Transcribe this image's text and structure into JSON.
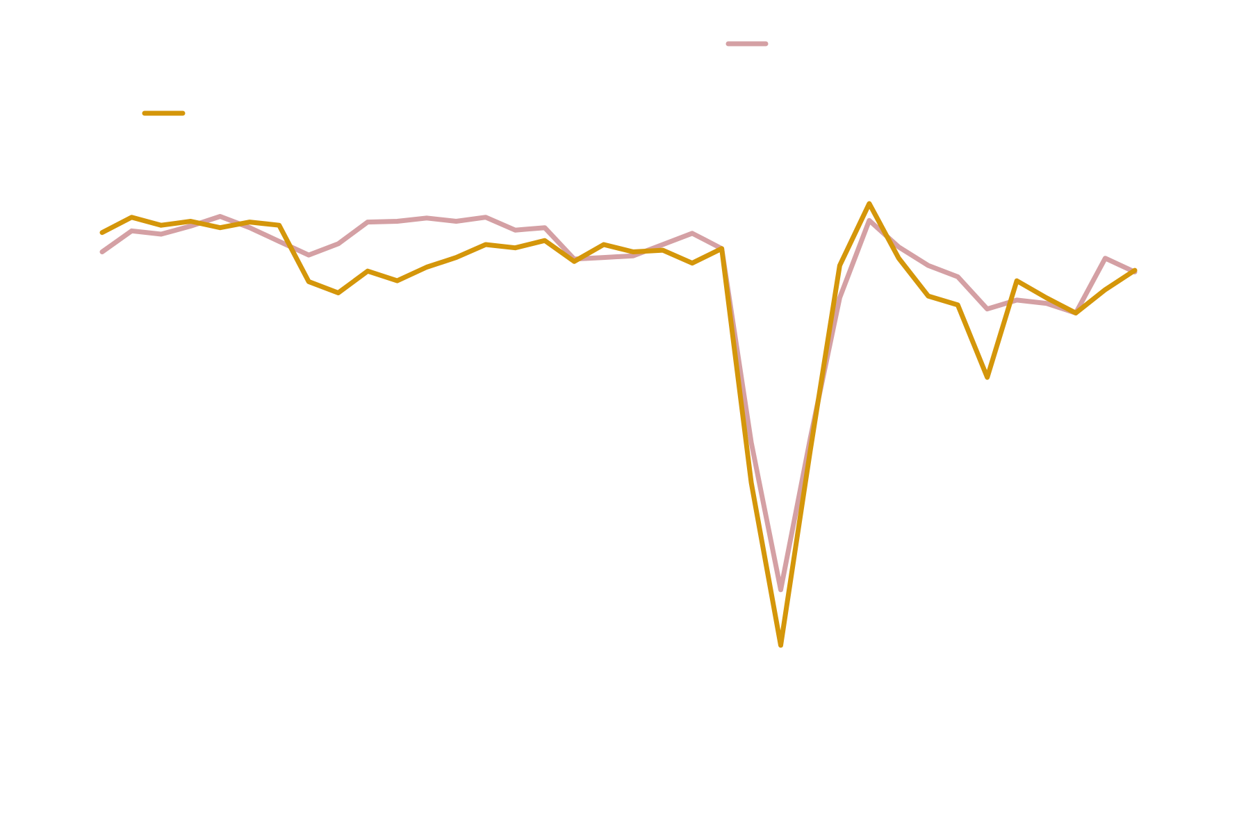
{
  "chart_data": {
    "type": "line",
    "categories": [
      null,
      null,
      null,
      null,
      null,
      null,
      null,
      null,
      null,
      null,
      null,
      null,
      null,
      null,
      null,
      null,
      null,
      null,
      null,
      null,
      null,
      null,
      null,
      null,
      null,
      null,
      null,
      null,
      null,
      null,
      null,
      null,
      null,
      null,
      null,
      null
    ],
    "series": [
      {
        "color": "#d4a0a4",
        "values": [
          68.7,
          71.3,
          70.9,
          71.9,
          73.1,
          71.7,
          70,
          68.3,
          69.7,
          72.4,
          72.5,
          72.9,
          72.5,
          73,
          71.4,
          71.7,
          67.8,
          68,
          68.2,
          69.6,
          71,
          69.1,
          45,
          26.7,
          45.5,
          63,
          72.6,
          69.3,
          67,
          65.6,
          61.6,
          62.7,
          62.3,
          61.1,
          67.9,
          66.2
        ]
      },
      {
        "color": "#d4960a",
        "values": [
          71.1,
          73,
          72,
          72.5,
          71.7,
          72.4,
          72,
          65,
          63.6,
          66.3,
          65.1,
          66.8,
          68,
          69.6,
          69.2,
          70.1,
          67.5,
          69.6,
          68.7,
          68.9,
          67.3,
          69.1,
          40,
          19.8,
          44,
          67,
          74.7,
          67.9,
          63.2,
          62.1,
          53.1,
          65.1,
          63,
          61.1,
          64,
          66.4
        ]
      }
    ],
    "ylim": [
      0,
      100
    ]
  }
}
